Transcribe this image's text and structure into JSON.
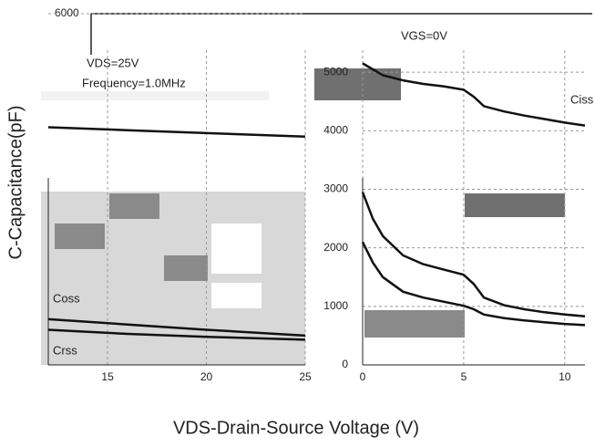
{
  "chart_data": [
    {
      "type": "line",
      "xlim": [
        12,
        25
      ],
      "ylim": [
        0,
        6000
      ],
      "xticks": [
        15,
        20,
        25
      ],
      "yticks": [
        6000
      ],
      "series": [
        {
          "name": "Ciss",
          "color": "#111111",
          "x": [
            12,
            16,
            20,
            25
          ],
          "values": [
            4060,
            4010,
            3960,
            3900
          ]
        },
        {
          "name": "Coss",
          "color": "#111111",
          "x": [
            12,
            16,
            20,
            25
          ],
          "values": [
            780,
            690,
            600,
            500
          ]
        },
        {
          "name": "Crss",
          "color": "#111111",
          "x": [
            12,
            16,
            20,
            25
          ],
          "values": [
            600,
            530,
            480,
            430
          ]
        }
      ]
    },
    {
      "type": "line",
      "xlim": [
        0,
        11
      ],
      "ylim": [
        0,
        6000
      ],
      "xticks": [
        0,
        5,
        10
      ],
      "yticks": [
        0,
        1000,
        2000,
        3000,
        4000,
        5000
      ],
      "series": [
        {
          "name": "Ciss",
          "color": "#111111",
          "x": [
            0,
            1,
            2,
            3,
            4,
            5,
            5.5,
            6,
            7,
            8,
            9,
            10,
            11
          ],
          "values": [
            5150,
            4950,
            4860,
            4800,
            4760,
            4700,
            4580,
            4420,
            4330,
            4260,
            4200,
            4140,
            4090
          ]
        },
        {
          "name": "Coss",
          "color": "#111111",
          "x": [
            0,
            0.5,
            1,
            2,
            3,
            4,
            5,
            5.5,
            6,
            7,
            8,
            9,
            10,
            11
          ],
          "values": [
            2950,
            2500,
            2200,
            1870,
            1720,
            1630,
            1540,
            1380,
            1150,
            1020,
            950,
            900,
            860,
            830
          ]
        },
        {
          "name": "Crss",
          "color": "#111111",
          "x": [
            0,
            0.5,
            1,
            2,
            3,
            4,
            5,
            5.5,
            6,
            7,
            8,
            9,
            10,
            11
          ],
          "values": [
            2100,
            1750,
            1500,
            1250,
            1150,
            1080,
            1010,
            950,
            860,
            800,
            760,
            730,
            700,
            680
          ]
        }
      ]
    }
  ],
  "y_label": "C-Capacitance(pF)",
  "x_label": "VDS-Drain-Source Voltage (V)",
  "annotations": {
    "vgs": "VGS=0V",
    "vds": "VDS=25V",
    "frequency": "Frequency=1.0MHz",
    "ciss": "Ciss",
    "coss": "Coss",
    "crss": "Crss"
  }
}
